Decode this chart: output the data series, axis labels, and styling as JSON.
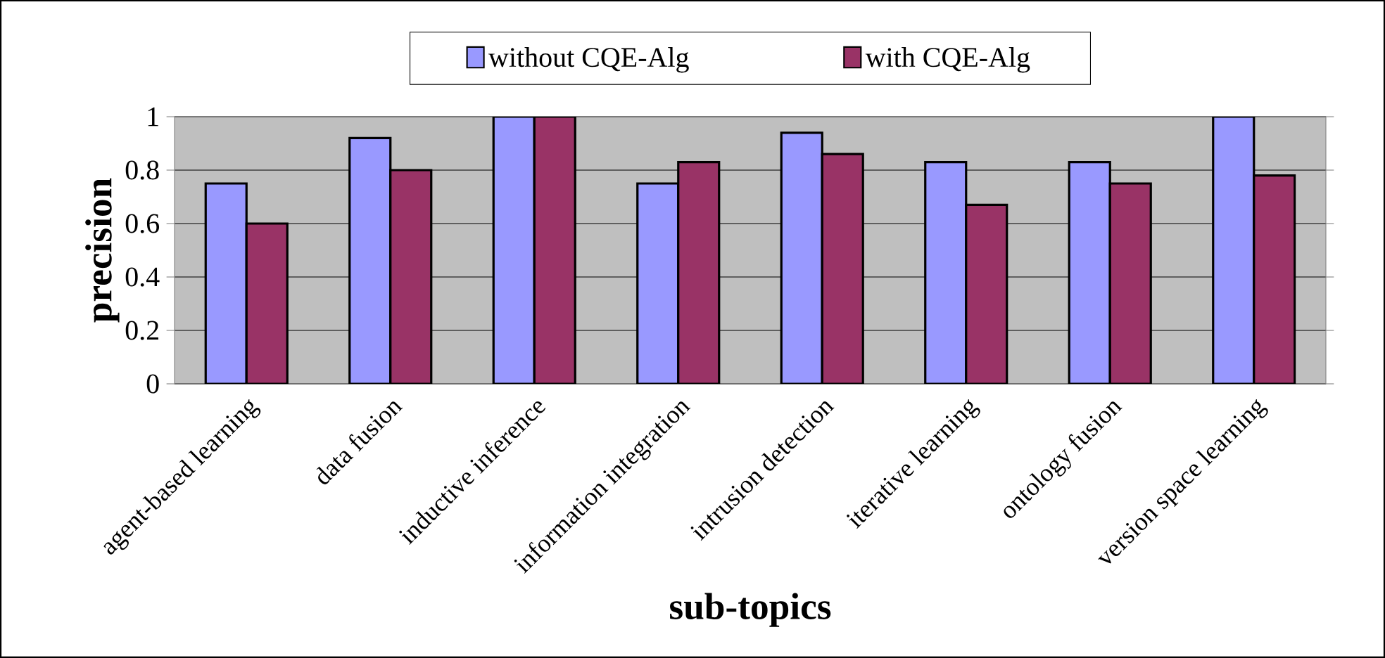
{
  "chart_data": {
    "type": "bar",
    "xlabel": "sub-topics",
    "ylabel": "precision",
    "categories": [
      "agent-based learning",
      "data fusion",
      "inductive inference",
      "information integration",
      "intrusion detection",
      "iterative learning",
      "ontology fusion",
      "version space learning"
    ],
    "series": [
      {
        "name": "without CQE-Alg",
        "color": "#9999ff",
        "values": [
          0.75,
          0.92,
          1,
          0.75,
          0.94,
          0.83,
          0.83,
          1
        ]
      },
      {
        "name": "with CQE-Alg",
        "color": "#993366",
        "values": [
          0.6,
          0.8,
          1,
          0.83,
          0.86,
          0.67,
          0.75,
          0.78
        ]
      }
    ],
    "ylim": [
      0,
      1
    ],
    "yticks": [
      0,
      0.2,
      0.4,
      0.6,
      0.8,
      1
    ],
    "grid": "y",
    "legend": "top"
  }
}
